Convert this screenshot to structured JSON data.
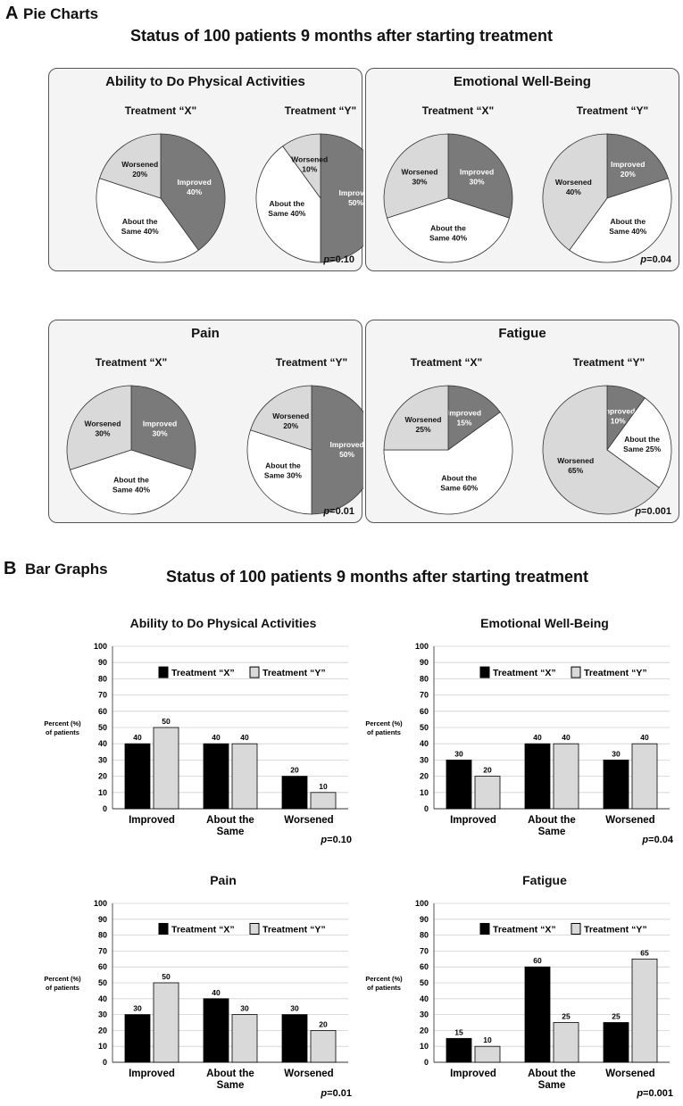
{
  "section_a": {
    "letter": "A",
    "label": "Pie Charts",
    "title": "Status of 100 patients 9 months after starting treatment"
  },
  "section_b": {
    "letter": "B",
    "label": "Bar Graphs",
    "title": "Status of 100 patients 9 months after starting treatment"
  },
  "treatment_x": "Treatment “X”",
  "treatment_y": "Treatment “Y”",
  "treatment_x_pie": "Treatment “X\"",
  "treatment_y_pie": "Treatment “Y\"",
  "p_prefix": "p",
  "colors": {
    "improved": "#7a7a7a",
    "same": "#ffffff",
    "worsened": "#d9d9d9",
    "bar_x": "#000000",
    "bar_y": "#d9d9d9"
  },
  "chart_data": [
    {
      "type": "pie",
      "title": "Ability to Do Physical Activities",
      "p_value": "=0.10",
      "treatments": [
        {
          "name": "Treatment “X\"",
          "slices": [
            {
              "label": "Improved",
              "value": 40
            },
            {
              "label": "About the Same",
              "value": 40
            },
            {
              "label": "Worsened",
              "value": 20
            }
          ]
        },
        {
          "name": "Treatment “Y\"",
          "slices": [
            {
              "label": "Improved",
              "value": 50
            },
            {
              "label": "About the Same",
              "value": 40
            },
            {
              "label": "Worsened",
              "value": 10
            }
          ]
        }
      ]
    },
    {
      "type": "pie",
      "title": "Emotional Well-Being",
      "p_value": "=0.04",
      "treatments": [
        {
          "name": "Treatment “X\"",
          "slices": [
            {
              "label": "Improved",
              "value": 30
            },
            {
              "label": "About the Same",
              "value": 40
            },
            {
              "label": "Worsened",
              "value": 30
            }
          ]
        },
        {
          "name": "Treatment “Y\"",
          "slices": [
            {
              "label": "Improved",
              "value": 20
            },
            {
              "label": "About the Same",
              "value": 40
            },
            {
              "label": "Worsened",
              "value": 40
            }
          ]
        }
      ]
    },
    {
      "type": "pie",
      "title": "Pain",
      "p_value": "=0.01",
      "treatments": [
        {
          "name": "Treatment “X\"",
          "slices": [
            {
              "label": "Improved",
              "value": 30
            },
            {
              "label": "About the Same",
              "value": 40
            },
            {
              "label": "Worsened",
              "value": 30
            }
          ]
        },
        {
          "name": "Treatment “Y\"",
          "slices": [
            {
              "label": "Improved",
              "value": 50
            },
            {
              "label": "About the Same",
              "value": 30
            },
            {
              "label": "Worsened",
              "value": 20
            }
          ]
        }
      ]
    },
    {
      "type": "pie",
      "title": "Fatigue",
      "p_value": "=0.001",
      "treatments": [
        {
          "name": "Treatment “X\"",
          "slices": [
            {
              "label": "Improved",
              "value": 15
            },
            {
              "label": "About the Same",
              "value": 60
            },
            {
              "label": "Worsened",
              "value": 25
            }
          ]
        },
        {
          "name": "Treatment “Y\"",
          "slices": [
            {
              "label": "Improved",
              "value": 10
            },
            {
              "label": "About the Same",
              "value": 25
            },
            {
              "label": "Worsened",
              "value": 65
            }
          ]
        }
      ]
    },
    {
      "type": "bar",
      "title": "Ability to Do Physical Activities",
      "p_value": "=0.10",
      "categories": [
        "Improved",
        "About the Same",
        "Worsened"
      ],
      "series": [
        {
          "name": "Treatment “X”",
          "values": [
            40,
            40,
            20
          ]
        },
        {
          "name": "Treatment “Y”",
          "values": [
            50,
            40,
            10
          ]
        }
      ],
      "ylabel": "Percent (%) of patients",
      "ylim": [
        0,
        100
      ],
      "yticks": [
        0,
        10,
        20,
        30,
        40,
        50,
        60,
        70,
        80,
        90,
        100
      ]
    },
    {
      "type": "bar",
      "title": "Emotional Well-Being",
      "p_value": "=0.04",
      "categories": [
        "Improved",
        "About the Same",
        "Worsened"
      ],
      "series": [
        {
          "name": "Treatment “X”",
          "values": [
            30,
            40,
            30
          ]
        },
        {
          "name": "Treatment “Y”",
          "values": [
            20,
            40,
            40
          ]
        }
      ],
      "ylabel": "Percent (%) of patients",
      "ylim": [
        0,
        100
      ],
      "yticks": [
        0,
        10,
        20,
        30,
        40,
        50,
        60,
        70,
        80,
        90,
        100
      ]
    },
    {
      "type": "bar",
      "title": "Pain",
      "p_value": "=0.01",
      "categories": [
        "Improved",
        "About the Same",
        "Worsened"
      ],
      "series": [
        {
          "name": "Treatment “X”",
          "values": [
            30,
            40,
            30
          ]
        },
        {
          "name": "Treatment “Y”",
          "values": [
            50,
            30,
            20
          ]
        }
      ],
      "ylabel": "Percent (%) of patients",
      "ylim": [
        0,
        100
      ],
      "yticks": [
        0,
        10,
        20,
        30,
        40,
        50,
        60,
        70,
        80,
        90,
        100
      ]
    },
    {
      "type": "bar",
      "title": "Fatigue",
      "p_value": "=0.001",
      "categories": [
        "Improved",
        "About the Same",
        "Worsened"
      ],
      "series": [
        {
          "name": "Treatment “X”",
          "values": [
            15,
            60,
            25
          ]
        },
        {
          "name": "Treatment “Y”",
          "values": [
            10,
            25,
            65
          ]
        }
      ],
      "ylabel": "Percent (%) of patients",
      "ylim": [
        0,
        100
      ],
      "yticks": [
        0,
        10,
        20,
        30,
        40,
        50,
        60,
        70,
        80,
        90,
        100
      ]
    }
  ]
}
